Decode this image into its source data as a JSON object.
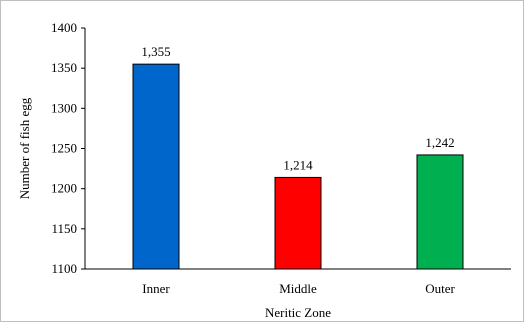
{
  "chart_data": {
    "type": "bar",
    "categories": [
      "Inner",
      "Middle",
      "Outer"
    ],
    "values": [
      1355,
      1214,
      1242
    ],
    "data_labels": [
      "1,355",
      "1,214",
      "1,242"
    ],
    "colors": [
      "#0066cc",
      "#ff0000",
      "#00b050"
    ],
    "xlabel": "Neritic Zone",
    "ylabel": "Number of fish egg",
    "ylim": [
      1100,
      1400
    ],
    "yticks": [
      1100,
      1150,
      1200,
      1250,
      1300,
      1350,
      1400
    ],
    "grid": false,
    "legend": "none"
  }
}
